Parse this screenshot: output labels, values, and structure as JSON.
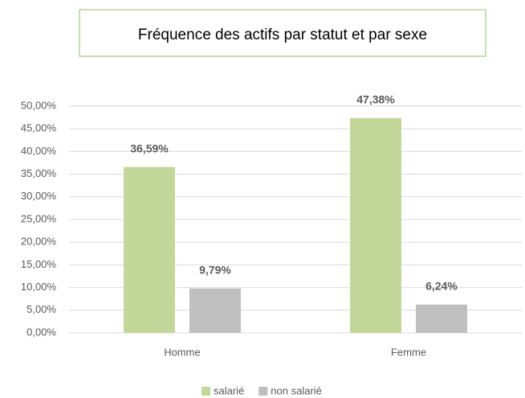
{
  "chart_data": {
    "type": "bar",
    "title": "Fréquence des actifs par statut et par sexe",
    "categories": [
      "Homme",
      "Femme"
    ],
    "series": [
      {
        "name": "salarié",
        "color": "#c4d79b",
        "values": [
          36.59,
          47.38
        ],
        "value_labels": [
          "36,59%",
          "47,38%"
        ]
      },
      {
        "name": "non salarié",
        "color": "#bfbfbf",
        "values": [
          9.79,
          6.24
        ],
        "value_labels": [
          "9,79%",
          "6,24%"
        ]
      }
    ],
    "ylim": [
      0,
      50
    ],
    "yticks": [
      {
        "value": 0,
        "label": "0,00%"
      },
      {
        "value": 5,
        "label": "5,00%"
      },
      {
        "value": 10,
        "label": "10,00%"
      },
      {
        "value": 15,
        "label": "15,00%"
      },
      {
        "value": 20,
        "label": "20,00%"
      },
      {
        "value": 25,
        "label": "25,00%"
      },
      {
        "value": 30,
        "label": "30,00%"
      },
      {
        "value": 35,
        "label": "35,00%"
      },
      {
        "value": 40,
        "label": "40,00%"
      },
      {
        "value": 45,
        "label": "45,00%"
      },
      {
        "value": 50,
        "label": "50,00%"
      }
    ],
    "grid": true,
    "legend": "bottom"
  }
}
